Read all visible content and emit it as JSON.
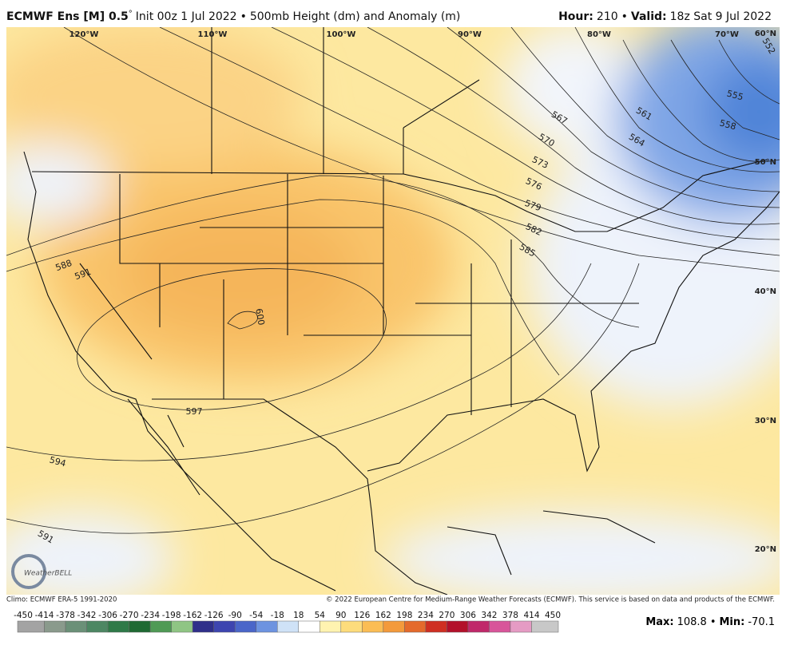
{
  "header": {
    "model": "ECMWF Ens [M] 0.5",
    "degree": "°",
    "init": "Init 00z 1 Jul 2022",
    "separator": "•",
    "product": "500mb Height (dm) and Anomaly (m)",
    "hour_label": "Hour:",
    "hour": "210",
    "valid_label": "Valid:",
    "valid": "18z Sat 9 Jul 2022"
  },
  "longitude_labels": [
    "120°W",
    "110°W",
    "100°W",
    "90°W",
    "80°W",
    "70°W"
  ],
  "latitude_labels": [
    "60°N",
    "50°N",
    "40°N",
    "30°N",
    "20°N"
  ],
  "contour_labels": [
    "567",
    "570",
    "573",
    "576",
    "579",
    "582",
    "585",
    "561",
    "564",
    "555",
    "558",
    "552",
    "588",
    "591",
    "600",
    "597",
    "594",
    "591"
  ],
  "logo": "WeatherBELL",
  "footer": {
    "climo": "Climo: ECMWF ERA-5 1991-2020",
    "copyright": "© 2022 European Centre for Medium-Range Weather Forecasts (ECMWF). This service is based on data and products of the ECMWF."
  },
  "colorbar": {
    "ticks": [
      -450,
      -414,
      -378,
      -342,
      -306,
      -270,
      -234,
      -198,
      -162,
      -126,
      -90,
      -54,
      -18,
      18,
      54,
      90,
      126,
      162,
      198,
      234,
      270,
      306,
      342,
      378,
      414,
      450
    ],
    "colors": [
      "#a3a3a3",
      "#8a9a8c",
      "#6b9078",
      "#4d8763",
      "#2f7a48",
      "#1f6a33",
      "#4f9a55",
      "#8fc584",
      "#2f2f8a",
      "#3d45b0",
      "#4a66c9",
      "#6d93e0",
      "#cfe2f7",
      "#ffffff",
      "#fff3b0",
      "#fddc7c",
      "#fbbd55",
      "#f39a3c",
      "#e46a2c",
      "#cf2f22",
      "#b3102a",
      "#c0286a",
      "#d8559a",
      "#e59bc4",
      "#c8c8c8"
    ]
  },
  "stats": {
    "max_label": "Max:",
    "max": 108.8,
    "separator": "•",
    "min_label": "Min:",
    "min": -70.1
  }
}
